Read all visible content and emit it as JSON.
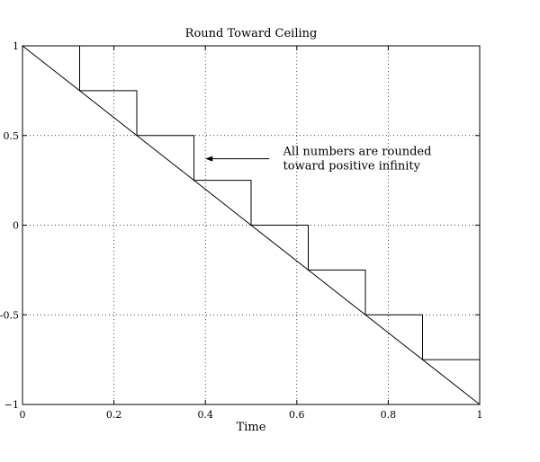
{
  "chart_data": {
    "type": "line",
    "title": "Round Toward Ceiling",
    "xlabel": "Time",
    "ylabel": "",
    "xlim": [
      0,
      1
    ],
    "ylim": [
      -1,
      1
    ],
    "xticks": [
      0,
      0.2,
      0.4,
      0.6,
      0.8,
      1
    ],
    "xtick_labels": [
      "0",
      "0.2",
      "0.4",
      "0.6",
      "0.8",
      "1"
    ],
    "yticks": [
      -1,
      -0.5,
      0,
      0.5,
      1
    ],
    "ytick_labels": [
      "−1",
      "-0.5",
      "0",
      "0.5",
      "1"
    ],
    "grid": true,
    "series": [
      {
        "kind": "line",
        "x": [
          0,
          1
        ],
        "y": [
          1,
          -1
        ]
      },
      {
        "kind": "staircase",
        "x": [
          0.125,
          0.125,
          0.25,
          0.25,
          0.375,
          0.375,
          0.5,
          0.5,
          0.625,
          0.625,
          0.75,
          0.75,
          0.875,
          0.875,
          1,
          1
        ],
        "y": [
          1,
          0.75,
          0.75,
          0.5,
          0.5,
          0.25,
          0.25,
          0,
          0,
          -0.25,
          -0.25,
          -0.5,
          -0.5,
          -0.75,
          -0.75,
          -1
        ]
      }
    ],
    "annotation": {
      "lines": [
        "All numbers are rounded",
        "toward positive infinity"
      ],
      "arrow_to": [
        0.4,
        0.37
      ],
      "arrow_from": [
        0.54,
        0.37
      ],
      "text_at": [
        0.57,
        0.39
      ]
    }
  }
}
